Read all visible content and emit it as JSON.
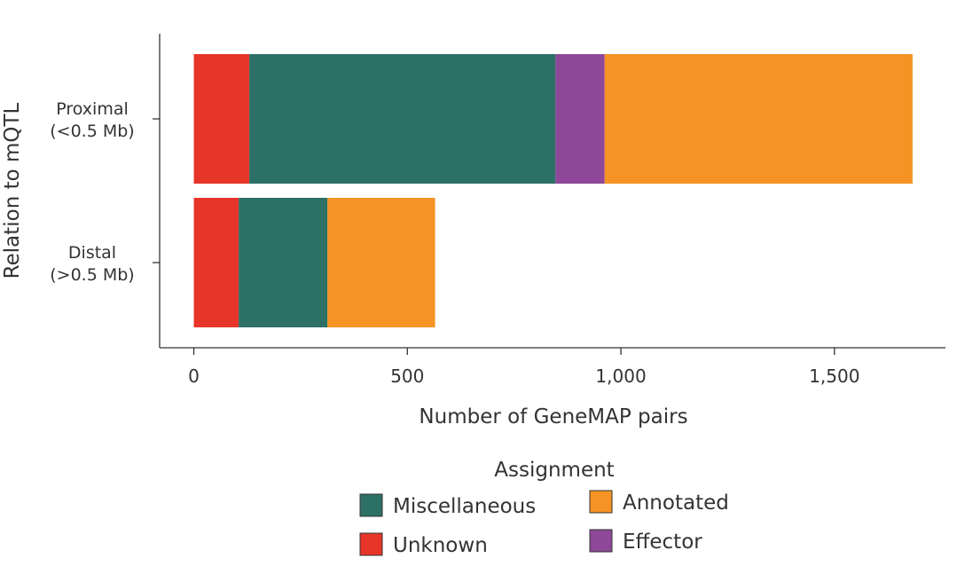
{
  "chart_data": {
    "type": "bar",
    "orientation": "horizontal",
    "stacked": true,
    "categories": [
      {
        "line1": "Proximal",
        "line2": "(<0.5 Mb)"
      },
      {
        "line1": "Distal",
        "line2": "(>0.5 Mb)"
      }
    ],
    "series": [
      {
        "name": "Unknown",
        "color": "#e8352a",
        "values": [
          130,
          105
        ]
      },
      {
        "name": "Miscellaneous",
        "color": "#2d7066",
        "values": [
          717,
          208
        ]
      },
      {
        "name": "Effector",
        "color": "#8e4799",
        "values": [
          115,
          0
        ]
      },
      {
        "name": "Annotated",
        "color": "#f59324",
        "values": [
          721,
          252
        ]
      }
    ],
    "xlabel": "Number of GeneMAP pairs",
    "ylabel": "Relation to mQTL",
    "xlim": [
      -80,
      1760
    ],
    "xticks": [
      0,
      500,
      1000,
      1500
    ],
    "xtick_labels": [
      "0",
      "500",
      "1,000",
      "1,500"
    ],
    "grid": false,
    "legend": {
      "title": "Assignment",
      "placement": "bottom",
      "items": [
        {
          "name": "Miscellaneous",
          "color": "#2d7066"
        },
        {
          "name": "Annotated",
          "color": "#f59324"
        },
        {
          "name": "Unknown",
          "color": "#e8352a"
        },
        {
          "name": "Effector",
          "color": "#8e4799"
        }
      ]
    }
  }
}
